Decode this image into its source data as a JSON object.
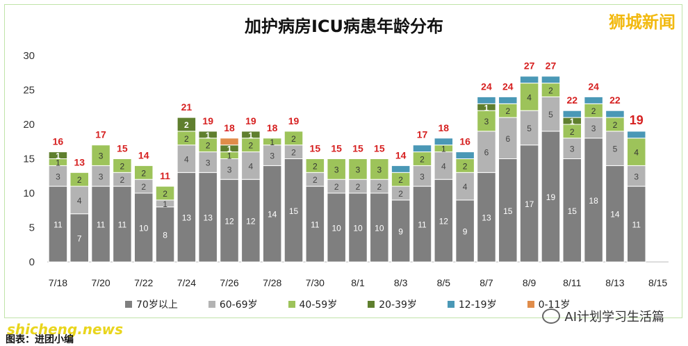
{
  "header": {
    "brand": "狮城新闻"
  },
  "footer": {
    "watermark": "shicheng.news",
    "caption": "图表：进团小编",
    "wechat": "AI计划学习生活篇"
  },
  "chart_data": {
    "type": "bar",
    "stacked": true,
    "title": "加护病房ICU病患年龄分布",
    "ylim": [
      0,
      30
    ],
    "yticks": [
      0,
      5,
      10,
      15,
      20,
      25,
      30
    ],
    "categories": [
      "7/18",
      "7/19",
      "7/20",
      "7/21",
      "7/22",
      "7/23",
      "7/24",
      "7/25",
      "7/26",
      "7/27",
      "7/28",
      "7/29",
      "7/30",
      "7/31",
      "8/1",
      "8/2",
      "8/3",
      "8/4",
      "8/5",
      "8/6",
      "8/7",
      "8/8",
      "8/9",
      "8/10",
      "8/11",
      "8/12",
      "8/13",
      "8/14",
      "8/15"
    ],
    "xtick_labels": [
      "7/18",
      "",
      "7/20",
      "",
      "7/22",
      "",
      "7/24",
      "",
      "7/26",
      "",
      "7/28",
      "",
      "7/30",
      "",
      "8/1",
      "",
      "8/3",
      "",
      "8/5",
      "",
      "8/7",
      "",
      "8/9",
      "",
      "8/11",
      "",
      "8/13",
      "",
      "8/15"
    ],
    "series": [
      {
        "name": "70岁以上",
        "color": "#7f7f7f",
        "values": [
          11,
          7,
          11,
          11,
          10,
          8,
          13,
          13,
          12,
          12,
          14,
          15,
          11,
          10,
          10,
          10,
          9,
          11,
          12,
          9,
          13,
          15,
          17,
          19,
          15,
          18,
          14,
          11,
          0
        ]
      },
      {
        "name": "60-69岁",
        "color": "#b3b3b3",
        "values": [
          3,
          4,
          3,
          2,
          2,
          1,
          4,
          3,
          3,
          4,
          3,
          2,
          2,
          2,
          2,
          2,
          2,
          3,
          4,
          4,
          6,
          6,
          5,
          5,
          3,
          3,
          5,
          3,
          0
        ]
      },
      {
        "name": "40-59岁",
        "color": "#9dc35a",
        "values": [
          1,
          2,
          3,
          2,
          2,
          2,
          2,
          2,
          1,
          2,
          1,
          2,
          2,
          3,
          3,
          3,
          2,
          2,
          1,
          2,
          3,
          2,
          4,
          2,
          2,
          2,
          2,
          4,
          0
        ]
      },
      {
        "name": "20-39岁",
        "color": "#5f7f2e",
        "values": [
          1,
          0,
          0,
          0,
          0,
          0,
          2,
          1,
          1,
          1,
          0,
          0,
          0,
          0,
          0,
          0,
          0,
          0,
          0,
          0,
          1,
          0,
          0,
          0,
          1,
          0,
          0,
          0,
          0
        ]
      },
      {
        "name": "12-19岁",
        "color": "#4a98b6",
        "values": [
          0,
          0,
          0,
          0,
          0,
          0,
          0,
          0,
          0,
          0,
          0,
          0,
          0,
          0,
          0,
          0,
          1,
          1,
          1,
          1,
          1,
          1,
          1,
          1,
          1,
          1,
          1,
          1,
          0
        ]
      },
      {
        "name": "0-11岁",
        "color": "#e08c4a",
        "values": [
          0,
          0,
          0,
          0,
          0,
          0,
          0,
          0,
          1,
          0,
          0,
          0,
          0,
          0,
          0,
          0,
          0,
          0,
          0,
          0,
          0,
          0,
          0,
          0,
          0,
          0,
          0,
          0,
          0
        ]
      }
    ],
    "totals": [
      16,
      13,
      17,
      15,
      14,
      11,
      21,
      19,
      18,
      19,
      18,
      19,
      15,
      15,
      15,
      15,
      14,
      17,
      18,
      16,
      24,
      24,
      27,
      27,
      22,
      24,
      22,
      19,
      null
    ],
    "legend_position": "bottom",
    "grid": false
  }
}
